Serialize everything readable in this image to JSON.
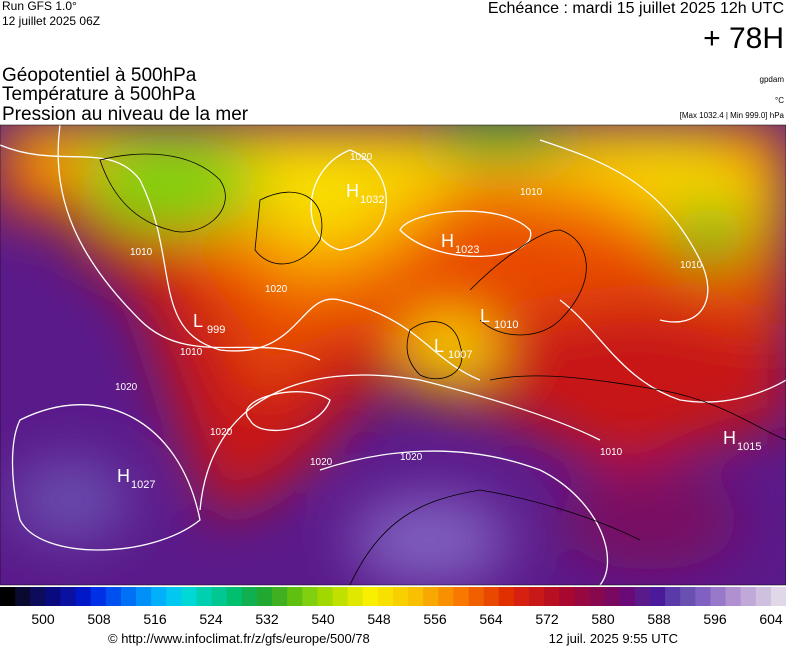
{
  "header": {
    "run": "Run GFS 1.0°",
    "date": "12 juillet 2025 06Z",
    "echeance": "Echéance : mardi 15 juillet 2025 12h UTC",
    "lead": "+ 78H"
  },
  "titles": [
    "Géopotentiel à 500hPa",
    "Température à 500hPa",
    "Pression au niveau de la mer"
  ],
  "units": [
    "gpdam",
    "°C",
    "[Max 1032.4 | Min 999.0] hPa"
  ],
  "centers": [
    {
      "letter": "H",
      "value": "1032"
    },
    {
      "letter": "H",
      "value": "1023"
    },
    {
      "letter": "L",
      "value": "999"
    },
    {
      "letter": "L",
      "value": "1010"
    },
    {
      "letter": "L",
      "value": "1007"
    },
    {
      "letter": "H",
      "value": "1027"
    },
    {
      "letter": "H",
      "value": "1015"
    }
  ],
  "isobar_labels": [
    "1020",
    "1010",
    "1010",
    "1020",
    "1010",
    "1020",
    "1020",
    "1020",
    "1020",
    "1010",
    "1010"
  ],
  "colorbar": {
    "labels": [
      "500",
      "508",
      "516",
      "524",
      "532",
      "540",
      "548",
      "556",
      "564",
      "572",
      "580",
      "588",
      "596",
      "604"
    ],
    "colors": [
      "#000000",
      "#0a0a30",
      "#0c0c5a",
      "#0a0a80",
      "#0a10a0",
      "#0018c8",
      "#0030e6",
      "#0050f0",
      "#0070f5",
      "#0090f8",
      "#00b0fa",
      "#00c8f0",
      "#00d8d8",
      "#00d0b0",
      "#00c890",
      "#00c070",
      "#10b050",
      "#20a830",
      "#40b020",
      "#60c010",
      "#80d010",
      "#a0d800",
      "#c0e000",
      "#e0e800",
      "#f8f000",
      "#f8e000",
      "#f8d000",
      "#f8c000",
      "#f8a800",
      "#f89000",
      "#f87800",
      "#f06000",
      "#e84800",
      "#e03000",
      "#d82010",
      "#c81818",
      "#b81020",
      "#a80830",
      "#980840",
      "#880850",
      "#780860",
      "#6a0a78",
      "#5a1a8a",
      "#4a1a9a",
      "#5a3aa8",
      "#6a50b0",
      "#8060c0",
      "#9878c8",
      "#b090d0",
      "#c0a8d8",
      "#d0c0e0",
      "#e0d8e8"
    ]
  },
  "footer": {
    "url": "© http://www.infoclimat.fr/z/gfs/europe/500/78",
    "time": "12 juil. 2025  9:55 UTC"
  }
}
